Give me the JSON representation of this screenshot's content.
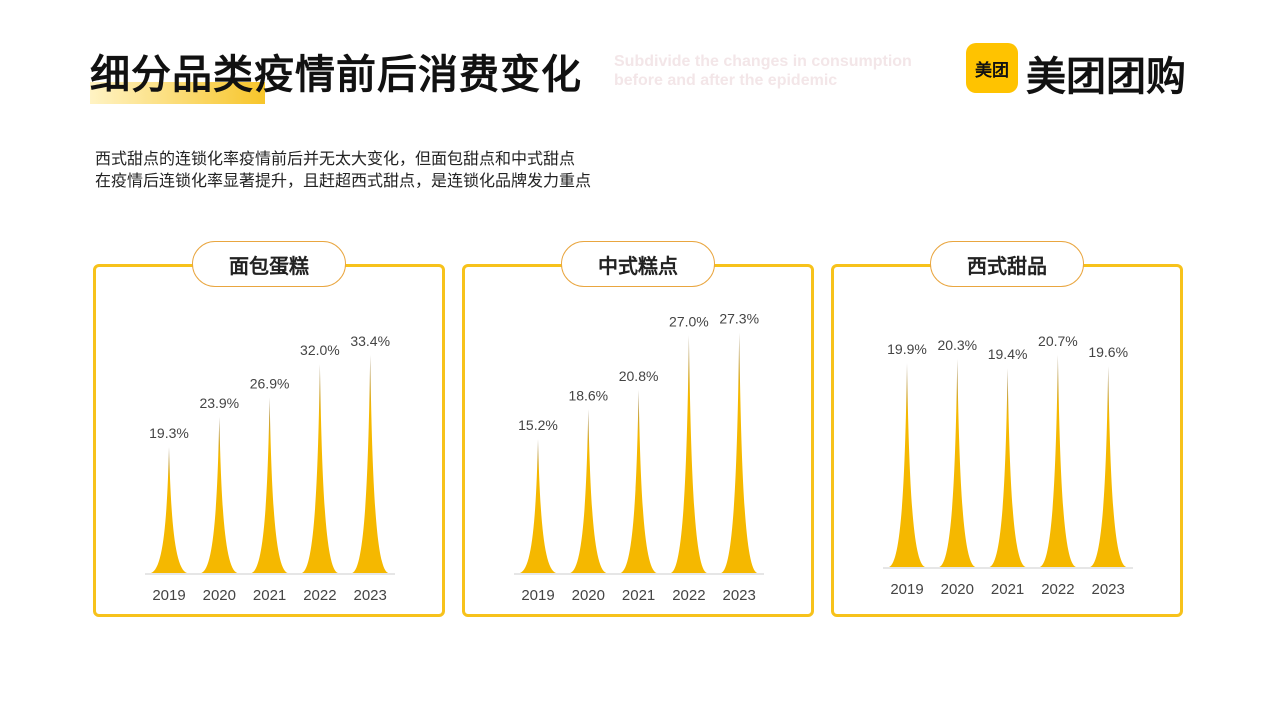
{
  "header": {
    "title": "细分品类疫情前后消费变化",
    "subtitle_line1": "Subdivide the changes in consumption",
    "subtitle_line2": "before and after the epidemic",
    "logo_text": "美团",
    "brand": "美团团购"
  },
  "description": {
    "line1": "西式甜点的连锁化率疫情前后并无太大变化，但面包甜点和中式甜点",
    "line2": "在疫情后连锁化率显著提升，且赶超西式甜点，是连锁化品牌发力重点"
  },
  "colors": {
    "accent": "#f7c21b",
    "bar": "#f5b800"
  },
  "chart_data": [
    {
      "type": "bar",
      "title": "面包蛋糕",
      "categories": [
        "2019",
        "2020",
        "2021",
        "2022",
        "2023"
      ],
      "values": [
        19.3,
        23.9,
        26.9,
        32.0,
        33.4
      ],
      "labels": [
        "19.3%",
        "23.9%",
        "26.9%",
        "32.0%",
        "33.4%"
      ],
      "ylim": [
        0,
        38.3
      ]
    },
    {
      "type": "bar",
      "title": "中式糕点",
      "categories": [
        "2019",
        "2020",
        "2021",
        "2022",
        "2023"
      ],
      "values": [
        15.2,
        18.6,
        20.8,
        27.0,
        27.3
      ],
      "labels": [
        "15.2%",
        "18.6%",
        "20.8%",
        "27.0%",
        "27.3%"
      ],
      "ylim": [
        0,
        28.4
      ]
    },
    {
      "type": "bar",
      "title": "西式甜品",
      "categories": [
        "2019",
        "2020",
        "2021",
        "2022",
        "2023"
      ],
      "values": [
        19.9,
        20.3,
        19.4,
        20.7,
        19.6
      ],
      "labels": [
        "19.9%",
        "20.3%",
        "19.4%",
        "20.7%",
        "19.6%"
      ],
      "ylim": [
        0,
        24.4
      ]
    }
  ]
}
